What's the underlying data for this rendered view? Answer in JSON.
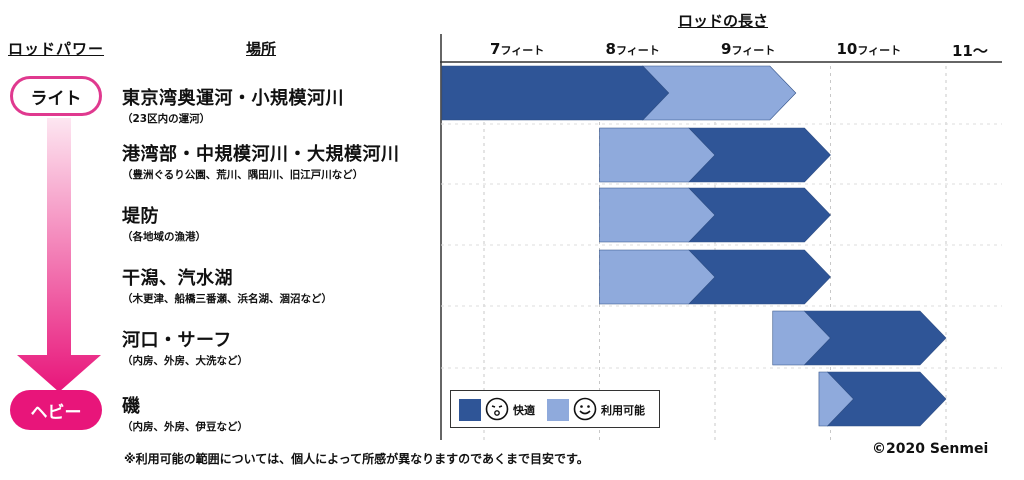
{
  "header": {
    "power_label": "ロッドパワー",
    "place_label": "場所",
    "length_label": "ロッドの長さ"
  },
  "power_scale": {
    "top_label": "ライト",
    "bottom_label": "ヘビー",
    "top_color": "#e0398f",
    "bottom_color": "#e8157a"
  },
  "ticks": [
    {
      "num": "7",
      "unit": "フィート"
    },
    {
      "num": "8",
      "unit": "フィート"
    },
    {
      "num": "9",
      "unit": "フィート"
    },
    {
      "num": "10",
      "unit": "フィート"
    },
    {
      "num": "11〜",
      "unit": ""
    }
  ],
  "locations": [
    {
      "name": "東京湾奥運河・小規模河川",
      "sub": "（23区内の運河）"
    },
    {
      "name": "港湾部・中規模河川・大規模河川",
      "sub": "（豊洲ぐるり公園、荒川、隅田川、旧江戸川など）"
    },
    {
      "name": "堤防",
      "sub": "（各地域の漁港）"
    },
    {
      "name": "干潟、汽水湖",
      "sub": "（木更津、船橋三番瀬、浜名湖、涸沼など）"
    },
    {
      "name": "河口・サーフ",
      "sub": "（内房、外房、大洗など）"
    },
    {
      "name": "磯",
      "sub": "（内房、外房、伊豆など）"
    }
  ],
  "legend": {
    "comfortable": "快適",
    "usable": "利用可能"
  },
  "footer": {
    "note": "※利用可能の範囲については、個人によって所感が異なりますのであくまで目安です。",
    "copyright": "©2020 Senmei"
  },
  "colors": {
    "comfortable": "#2f5597",
    "usable": "#8faadc"
  },
  "chart_data": {
    "type": "bar",
    "x_unit": "フィート",
    "categories": [
      "東京湾奥運河・小規模河川",
      "港湾部・中規模河川・大規模河川",
      "堤防",
      "干潟、汽水湖",
      "河口・サーフ",
      "磯"
    ],
    "ticks": [
      7,
      8,
      9,
      10,
      11
    ],
    "series": [
      {
        "name": "快適",
        "ranges": [
          [
            6.5,
            8.6
          ],
          [
            9.0,
            10.0
          ],
          [
            9.0,
            10.0
          ],
          [
            9.0,
            10.0
          ],
          [
            10.0,
            11.0
          ],
          [
            10.2,
            11.0
          ]
        ]
      },
      {
        "name": "利用可能",
        "ranges": [
          [
            8.6,
            9.7
          ],
          [
            8.0,
            9.0
          ],
          [
            8.0,
            9.0
          ],
          [
            8.0,
            9.0
          ],
          [
            9.5,
            10.0
          ],
          [
            9.9,
            10.2
          ]
        ]
      }
    ]
  }
}
